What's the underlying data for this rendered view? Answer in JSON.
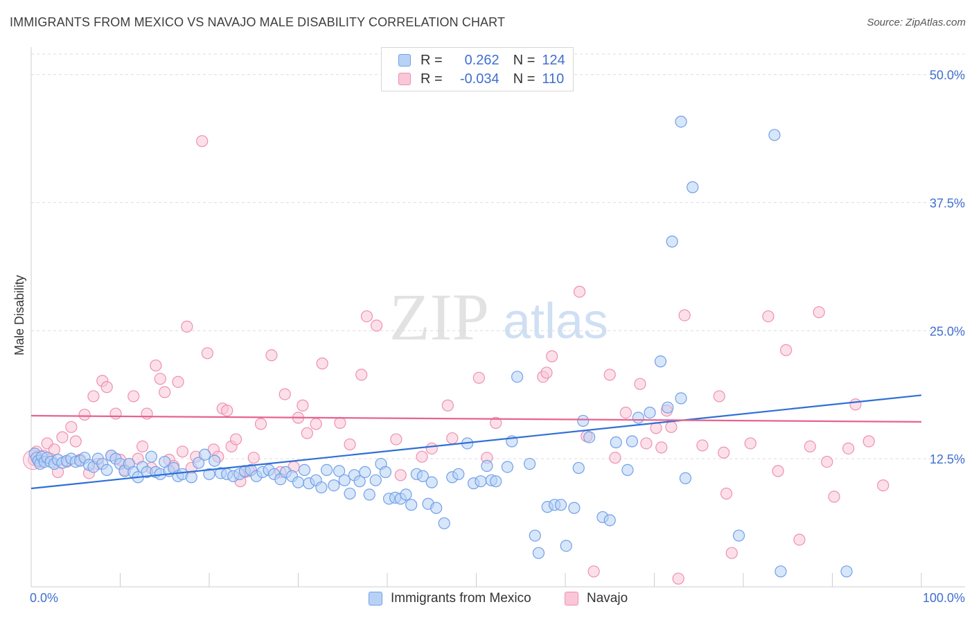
{
  "header": {
    "title": "IMMIGRANTS FROM MEXICO VS NAVAJO MALE DISABILITY CORRELATION CHART",
    "source": "Source: ZipAtlas.com"
  },
  "watermark": {
    "zip": "ZIP",
    "atlas": "atlas"
  },
  "legend": {
    "r_label": "R =",
    "n_label": "N =",
    "rows": [
      {
        "r": "0.262",
        "n": "124",
        "color": "#6fa0e8",
        "fill": "#b8d2f5"
      },
      {
        "r": "-0.034",
        "n": "110",
        "color": "#ee8fb0",
        "fill": "#f9c7d7"
      }
    ]
  },
  "bottom_legend": {
    "series1": "Immigrants from Mexico",
    "series2": "Navajo"
  },
  "colors": {
    "blue": "#6fa0e8",
    "blue_fill": "#b8d2f5",
    "blue_line": "#2f6fd6",
    "pink": "#ee8fb0",
    "pink_fill": "#f9c7d7",
    "pink_line": "#e7628f",
    "axis_text": "#3f6fcf"
  },
  "chart_data": {
    "type": "scatter",
    "title": "IMMIGRANTS FROM MEXICO VS NAVAJO MALE DISABILITY CORRELATION CHART",
    "xlabel": "",
    "ylabel": "Male Disability",
    "xlim": [
      0,
      100
    ],
    "ylim": [
      0,
      52
    ],
    "x_tick_labels": [
      "0.0%",
      "100.0%"
    ],
    "y_ticks": [
      12.5,
      25.0,
      37.5,
      50.0
    ],
    "y_tick_labels": [
      "12.5%",
      "25.0%",
      "37.5%",
      "50.0%"
    ],
    "grid": true,
    "series": [
      {
        "name": "Immigrants from Mexico",
        "r": 0.262,
        "n": 124,
        "trend": {
          "x": [
            0,
            100
          ],
          "y": [
            9.6,
            18.7
          ]
        },
        "points": [
          [
            0.4,
            13.0
          ],
          [
            0.6,
            12.6
          ],
          [
            0.8,
            12.3
          ],
          [
            1.0,
            12.0
          ],
          [
            1.2,
            12.7
          ],
          [
            1.5,
            12.2
          ],
          [
            1.8,
            12.6
          ],
          [
            2.2,
            12.2
          ],
          [
            2.6,
            12.0
          ],
          [
            3.0,
            12.4
          ],
          [
            3.5,
            12.1
          ],
          [
            4.0,
            12.3
          ],
          [
            4.5,
            12.5
          ],
          [
            5.0,
            12.2
          ],
          [
            5.5,
            12.3
          ],
          [
            6.0,
            12.6
          ],
          [
            6.5,
            11.9
          ],
          [
            7.0,
            11.7
          ],
          [
            7.5,
            12.5
          ],
          [
            8.0,
            12.0
          ],
          [
            8.5,
            11.4
          ],
          [
            9.0,
            12.8
          ],
          [
            9.5,
            12.5
          ],
          [
            10.0,
            12.0
          ],
          [
            10.5,
            11.3
          ],
          [
            11.0,
            12.0
          ],
          [
            11.5,
            11.2
          ],
          [
            12.0,
            10.7
          ],
          [
            12.5,
            11.7
          ],
          [
            13.0,
            11.2
          ],
          [
            13.5,
            12.7
          ],
          [
            14.0,
            11.2
          ],
          [
            14.5,
            11.0
          ],
          [
            15.0,
            12.2
          ],
          [
            15.5,
            11.3
          ],
          [
            16.0,
            11.6
          ],
          [
            16.5,
            10.8
          ],
          [
            17.0,
            11.0
          ],
          [
            18.0,
            10.7
          ],
          [
            18.8,
            12.1
          ],
          [
            19.5,
            12.9
          ],
          [
            20.0,
            11.0
          ],
          [
            20.6,
            12.3
          ],
          [
            21.3,
            11.1
          ],
          [
            22.0,
            11.0
          ],
          [
            22.7,
            10.8
          ],
          [
            23.4,
            11.0
          ],
          [
            24.0,
            11.3
          ],
          [
            24.7,
            11.4
          ],
          [
            25.3,
            10.8
          ],
          [
            26.0,
            11.2
          ],
          [
            26.7,
            11.4
          ],
          [
            27.3,
            11.0
          ],
          [
            28.0,
            10.5
          ],
          [
            28.6,
            11.2
          ],
          [
            29.3,
            10.8
          ],
          [
            30.0,
            10.2
          ],
          [
            30.7,
            11.4
          ],
          [
            31.2,
            10.1
          ],
          [
            32.0,
            10.4
          ],
          [
            32.6,
            9.7
          ],
          [
            33.2,
            11.4
          ],
          [
            34.0,
            9.9
          ],
          [
            34.6,
            11.3
          ],
          [
            35.2,
            10.4
          ],
          [
            35.8,
            9.1
          ],
          [
            36.3,
            10.9
          ],
          [
            36.9,
            10.3
          ],
          [
            37.5,
            11.2
          ],
          [
            38.0,
            9.0
          ],
          [
            38.7,
            10.4
          ],
          [
            39.3,
            12.0
          ],
          [
            39.8,
            11.2
          ],
          [
            40.2,
            8.6
          ],
          [
            40.9,
            8.7
          ],
          [
            41.5,
            8.6
          ],
          [
            42.1,
            9.0
          ],
          [
            42.7,
            8.0
          ],
          [
            43.3,
            11.0
          ],
          [
            44.0,
            10.8
          ],
          [
            44.6,
            8.1
          ],
          [
            45.0,
            10.2
          ],
          [
            45.5,
            7.7
          ],
          [
            46.4,
            6.2
          ],
          [
            47.3,
            10.7
          ],
          [
            48.0,
            11.0
          ],
          [
            49.0,
            14.0
          ],
          [
            49.7,
            10.1
          ],
          [
            50.5,
            10.3
          ],
          [
            51.2,
            11.8
          ],
          [
            51.7,
            10.4
          ],
          [
            52.2,
            10.3
          ],
          [
            53.5,
            11.7
          ],
          [
            54.0,
            14.2
          ],
          [
            54.6,
            20.5
          ],
          [
            56.0,
            12.0
          ],
          [
            56.6,
            5.0
          ],
          [
            57.0,
            3.3
          ],
          [
            58.0,
            7.8
          ],
          [
            58.8,
            8.0
          ],
          [
            59.5,
            8.0
          ],
          [
            60.1,
            4.0
          ],
          [
            61.0,
            7.7
          ],
          [
            61.5,
            11.6
          ],
          [
            62.0,
            16.2
          ],
          [
            62.7,
            14.6
          ],
          [
            64.2,
            6.8
          ],
          [
            65.0,
            6.5
          ],
          [
            65.7,
            14.1
          ],
          [
            67.0,
            11.4
          ],
          [
            67.5,
            14.2
          ],
          [
            68.2,
            16.5
          ],
          [
            69.5,
            17.0
          ],
          [
            70.7,
            22.0
          ],
          [
            71.5,
            17.5
          ],
          [
            72.0,
            33.7
          ],
          [
            73.0,
            18.4
          ],
          [
            73.0,
            45.4
          ],
          [
            73.5,
            10.6
          ],
          [
            74.3,
            39.0
          ],
          [
            79.5,
            5.0
          ],
          [
            83.5,
            44.1
          ],
          [
            84.2,
            1.5
          ],
          [
            91.6,
            1.5
          ]
        ]
      },
      {
        "name": "Navajo",
        "r": -0.034,
        "n": 110,
        "trend": {
          "x": [
            0,
            100
          ],
          "y": [
            16.7,
            16.1
          ]
        },
        "points": [
          [
            0.3,
            12.4
          ],
          [
            0.6,
            13.2
          ],
          [
            1.0,
            12.2
          ],
          [
            1.4,
            12.8
          ],
          [
            1.8,
            14.0
          ],
          [
            2.2,
            12.5
          ],
          [
            2.6,
            13.4
          ],
          [
            3.0,
            11.2
          ],
          [
            3.5,
            14.6
          ],
          [
            4.0,
            12.2
          ],
          [
            4.5,
            15.6
          ],
          [
            5.0,
            14.2
          ],
          [
            5.5,
            12.4
          ],
          [
            6.0,
            16.8
          ],
          [
            6.5,
            11.1
          ],
          [
            7.0,
            18.6
          ],
          [
            7.5,
            12.0
          ],
          [
            8.0,
            20.1
          ],
          [
            8.5,
            19.5
          ],
          [
            9.0,
            12.8
          ],
          [
            9.5,
            16.9
          ],
          [
            10.0,
            12.4
          ],
          [
            10.5,
            11.4
          ],
          [
            11.0,
            12.0
          ],
          [
            11.5,
            18.6
          ],
          [
            12.0,
            12.5
          ],
          [
            12.5,
            13.7
          ],
          [
            13.0,
            16.9
          ],
          [
            13.5,
            11.6
          ],
          [
            14.0,
            21.6
          ],
          [
            14.5,
            20.3
          ],
          [
            15.0,
            19.0
          ],
          [
            15.5,
            12.4
          ],
          [
            16.0,
            11.8
          ],
          [
            16.5,
            20.0
          ],
          [
            17.0,
            13.2
          ],
          [
            17.5,
            25.4
          ],
          [
            18.0,
            11.6
          ],
          [
            18.5,
            12.7
          ],
          [
            19.2,
            43.5
          ],
          [
            19.8,
            22.8
          ],
          [
            20.5,
            13.4
          ],
          [
            21.0,
            12.7
          ],
          [
            21.5,
            17.4
          ],
          [
            22.0,
            17.2
          ],
          [
            22.5,
            13.7
          ],
          [
            23.0,
            14.4
          ],
          [
            23.5,
            10.3
          ],
          [
            24.0,
            11.2
          ],
          [
            24.5,
            11.3
          ],
          [
            25.0,
            12.6
          ],
          [
            25.8,
            15.9
          ],
          [
            27.0,
            22.6
          ],
          [
            28.0,
            11.2
          ],
          [
            28.5,
            18.8
          ],
          [
            29.5,
            11.7
          ],
          [
            30.0,
            16.5
          ],
          [
            30.5,
            17.7
          ],
          [
            31.0,
            15.0
          ],
          [
            32.0,
            15.9
          ],
          [
            32.7,
            21.8
          ],
          [
            34.7,
            16.0
          ],
          [
            35.8,
            13.9
          ],
          [
            37.1,
            20.7
          ],
          [
            37.7,
            26.4
          ],
          [
            38.8,
            25.5
          ],
          [
            41.0,
            14.4
          ],
          [
            41.5,
            10.9
          ],
          [
            43.9,
            12.7
          ],
          [
            45.0,
            13.5
          ],
          [
            46.8,
            17.7
          ],
          [
            47.3,
            14.5
          ],
          [
            50.3,
            20.4
          ],
          [
            51.2,
            12.6
          ],
          [
            52.2,
            16.0
          ],
          [
            57.5,
            20.5
          ],
          [
            57.9,
            20.9
          ],
          [
            58.5,
            22.5
          ],
          [
            61.6,
            28.8
          ],
          [
            62.4,
            14.7
          ],
          [
            63.2,
            1.5
          ],
          [
            65.0,
            20.7
          ],
          [
            65.6,
            12.6
          ],
          [
            66.8,
            17.0
          ],
          [
            68.4,
            19.8
          ],
          [
            69.1,
            14.0
          ],
          [
            70.2,
            15.5
          ],
          [
            70.8,
            13.6
          ],
          [
            71.4,
            17.2
          ],
          [
            71.9,
            15.6
          ],
          [
            72.7,
            0.8
          ],
          [
            73.4,
            26.5
          ],
          [
            75.4,
            13.8
          ],
          [
            77.3,
            18.6
          ],
          [
            77.8,
            13.1
          ],
          [
            78.1,
            9.1
          ],
          [
            78.7,
            3.3
          ],
          [
            80.8,
            14.0
          ],
          [
            82.8,
            26.4
          ],
          [
            83.9,
            11.3
          ],
          [
            84.8,
            23.1
          ],
          [
            86.3,
            4.6
          ],
          [
            87.5,
            13.7
          ],
          [
            88.5,
            26.8
          ],
          [
            89.4,
            12.2
          ],
          [
            90.2,
            8.8
          ],
          [
            91.8,
            13.5
          ],
          [
            92.6,
            17.8
          ],
          [
            94.1,
            14.2
          ],
          [
            95.7,
            9.9
          ]
        ]
      }
    ]
  }
}
